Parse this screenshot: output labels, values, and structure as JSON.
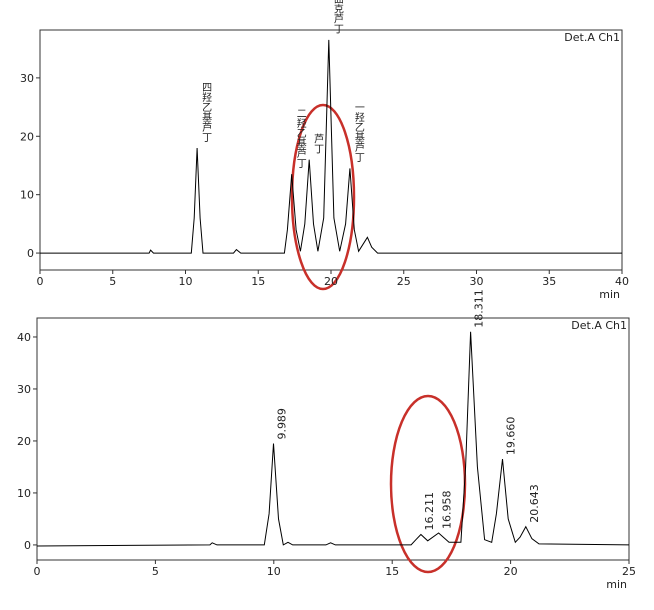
{
  "chart_data": [
    {
      "type": "line",
      "detector": "Det.A Ch1",
      "x_label": "min",
      "color": "#000000",
      "xlim": [
        0,
        40
      ],
      "ylim": [
        -2.9,
        38.2
      ],
      "xticks": [
        0,
        5,
        10,
        15,
        20,
        25,
        30,
        35,
        40
      ],
      "yticks": [
        0,
        10,
        20,
        30
      ],
      "x": [
        0,
        7.5,
        7.6,
        7.8,
        10.4,
        10.6,
        10.8,
        11.0,
        11.2,
        13.3,
        13.5,
        13.8,
        16.8,
        17.0,
        17.3,
        17.6,
        17.9,
        18.2,
        18.5,
        18.8,
        19.1,
        19.5,
        19.85,
        20.2,
        20.6,
        21.0,
        21.3,
        21.6,
        21.9,
        22.2,
        22.5,
        22.8,
        23.2,
        40
      ],
      "values": [
        0,
        0,
        0.5,
        0,
        0,
        6,
        18,
        6,
        0,
        0,
        0.6,
        0,
        0,
        4,
        13.5,
        4,
        0.3,
        5,
        16,
        5,
        0.3,
        6,
        36.5,
        6,
        0.3,
        5,
        14.5,
        4,
        0.3,
        1.5,
        2.7,
        1,
        0,
        0
      ],
      "peaks": [
        {
          "x": 10.8,
          "y": 18,
          "label": "四羟乙基芦丁"
        },
        {
          "x": 17.3,
          "y": 13.5,
          "label": "二羟乙基芦丁"
        },
        {
          "x": 18.5,
          "y": 16,
          "label": "芦丁"
        },
        {
          "x": 19.85,
          "y": 36.5,
          "label": "曲克芦丁"
        },
        {
          "x": 21.3,
          "y": 14.5,
          "label": "一羟乙基芦丁"
        }
      ]
    },
    {
      "type": "line",
      "detector": "Det.A Ch1",
      "x_label": "min",
      "color": "#000000",
      "xlim": [
        0,
        25
      ],
      "ylim": [
        -2.9,
        43.65
      ],
      "xticks": [
        0,
        5,
        10,
        15,
        20,
        25
      ],
      "yticks": [
        0,
        10,
        20,
        30,
        40
      ],
      "x": [
        0,
        7.3,
        7.4,
        7.6,
        9.6,
        9.8,
        9.989,
        10.2,
        10.4,
        10.6,
        10.8,
        12.2,
        12.4,
        12.6,
        15.8,
        16.0,
        16.211,
        16.5,
        16.958,
        17.4,
        17.9,
        18.1,
        18.311,
        18.6,
        18.9,
        19.2,
        19.4,
        19.66,
        19.9,
        20.2,
        20.4,
        20.643,
        20.9,
        21.2,
        25
      ],
      "values": [
        -0.2,
        0,
        0.4,
        0,
        0,
        6,
        19.5,
        5,
        0,
        0.5,
        0,
        0,
        0.4,
        0,
        0,
        1,
        2,
        0.8,
        2.3,
        0.5,
        0.5,
        15,
        41,
        15,
        1,
        0.5,
        6,
        16.5,
        5,
        0.5,
        1.5,
        3.5,
        1.2,
        0.2,
        0
      ],
      "peaks": [
        {
          "x": 9.989,
          "y": 19.5,
          "label": "9.989"
        },
        {
          "x": 16.211,
          "y": 2,
          "label": "16.211"
        },
        {
          "x": 16.958,
          "y": 2.3,
          "label": "16.958"
        },
        {
          "x": 18.311,
          "y": 41,
          "label": "18.311"
        },
        {
          "x": 19.66,
          "y": 16.5,
          "label": "19.660"
        },
        {
          "x": 20.643,
          "y": 3.5,
          "label": "20.643"
        }
      ]
    }
  ]
}
